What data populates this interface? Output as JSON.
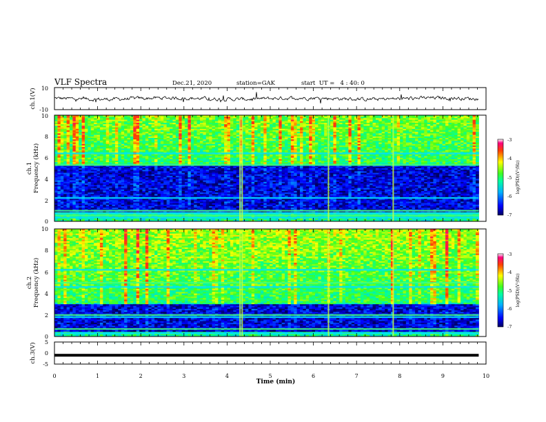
{
  "header": {
    "title": "VLF Spectra",
    "date": "Dec.21, 2020",
    "station": "station=GAK",
    "start": "start  UT =   4 : 40: 0"
  },
  "colors": {
    "colormap": [
      "#000060",
      "#0000c8",
      "#0050ff",
      "#00c8ff",
      "#00e8a0",
      "#40ff40",
      "#c8ff00",
      "#ffff00",
      "#ff8000",
      "#ff0000",
      "#ff00ff"
    ],
    "trace": "#000000",
    "background": "#ffffff"
  },
  "chart_data": [
    {
      "type": "line",
      "title": "",
      "ylabel": "ch.1(V)",
      "xlabel": "",
      "xlim": [
        0,
        10
      ],
      "ylim": [
        -10,
        10
      ],
      "yticks": [
        "10",
        "-10"
      ],
      "x_end": 9.83,
      "series": [
        {
          "description": "ch.1 voltage waveform, noisy around 0 V with excursions of about ±3 V",
          "mean": 0.0,
          "amplitude": 3.0
        }
      ]
    },
    {
      "type": "heatmap",
      "ylabel": "ch.1\nFrequency (kHz)",
      "xlim": [
        0,
        10
      ],
      "ylim": [
        0,
        10
      ],
      "yticks": [
        "0",
        "2",
        "4",
        "6",
        "8",
        "10"
      ],
      "x_end": 9.83,
      "value_unit": "log(PSD)(V²/Hz)",
      "value_range": [
        -7,
        -3
      ],
      "features": {
        "high_band_khz": [
          5.5,
          10
        ],
        "quiet_band_khz": [
          0.8,
          5.3
        ],
        "bright_lines_khz": [
          0.35,
          0.55,
          0.75,
          1.0,
          2.2,
          5.3,
          6.4
        ],
        "impulse_time_min": [
          4.3,
          4.35,
          6.35,
          7.85
        ]
      }
    },
    {
      "type": "heatmap",
      "ylabel": "ch.2\nFrequency (kHz)",
      "xlim": [
        0,
        10
      ],
      "ylim": [
        0,
        10
      ],
      "yticks": [
        "0",
        "2",
        "4",
        "6",
        "8",
        "10"
      ],
      "x_end": 9.83,
      "value_unit": "log(PSD)(V²/Hz)",
      "value_range": [
        -7,
        -3
      ],
      "features": {
        "high_band_khz": [
          3.2,
          10
        ],
        "quiet_band_khz": [
          0.5,
          3.0
        ],
        "bright_lines_khz": [
          0.3,
          0.7,
          1.8,
          2.0,
          4.6,
          5.0,
          6.2
        ],
        "impulse_time_min": [
          4.3,
          4.35,
          6.35,
          7.85
        ]
      }
    },
    {
      "type": "line",
      "ylabel": "ch.3(V)",
      "xlabel": "Time (min)",
      "xlim": [
        0,
        10
      ],
      "ylim": [
        -5,
        5
      ],
      "yticks": [
        "5",
        "0",
        "-5"
      ],
      "xticks": [
        "0",
        "1",
        "2",
        "3",
        "4",
        "5",
        "6",
        "7",
        "8",
        "9",
        "10"
      ],
      "x_end": 9.83,
      "series": [
        {
          "description": "ch.3 flat voltage",
          "value": -1.0
        }
      ]
    }
  ],
  "colorbars": [
    {
      "label": "log(PSD)(V²/Hz)",
      "ticks": [
        "-3",
        "-4",
        "-5",
        "-6",
        "-7"
      ]
    },
    {
      "label": "log(PSD)(V²/Hz)",
      "ticks": [
        "-3",
        "-4",
        "-5",
        "-6",
        "-7"
      ]
    }
  ]
}
